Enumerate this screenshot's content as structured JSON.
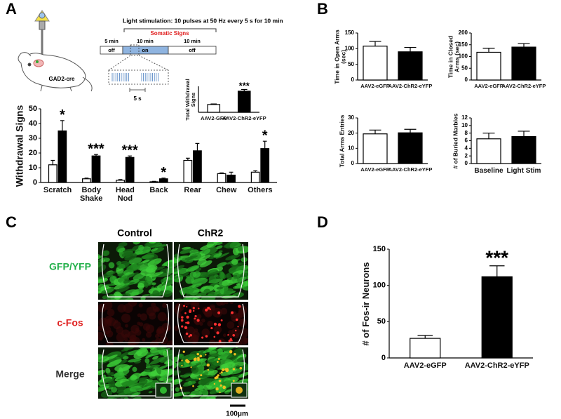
{
  "panels": [
    "A",
    "B",
    "C",
    "D"
  ],
  "protocol": {
    "title": "Light stimulation:  10 pulses at 50 Hz every 5 s for 10 min",
    "window_label": "Somatic Signs",
    "segments": [
      {
        "duration": "5 min",
        "state": "off"
      },
      {
        "duration": "10 min",
        "state": "on"
      },
      {
        "duration": "10 min",
        "state": "off"
      }
    ],
    "scale": "5 s",
    "mouse_line": "GAD2-cre"
  },
  "micrographs": {
    "columns": [
      "Control",
      "ChR2"
    ],
    "rows": [
      "GFP/YFP",
      "c-Fos",
      "Merge"
    ],
    "row_colors": [
      "#22b04a",
      "#e02020",
      "#333333"
    ],
    "scale_bar": "100μm"
  },
  "chart_data": [
    {
      "type": "bar",
      "ylabel": "Withdrawal Signs",
      "categories": [
        "Scratch",
        "Body Shake",
        "Head Nod",
        "Back",
        "Rear",
        "Chew",
        "Others"
      ],
      "series": [
        {
          "color": "#ffffff",
          "values": [
            12,
            2.5,
            1.5,
            0.5,
            15,
            6,
            7
          ],
          "errors": [
            3,
            0.5,
            0.5,
            0.3,
            1.5,
            0.5,
            1
          ]
        },
        {
          "color": "#000000",
          "values": [
            35,
            18,
            17,
            2.5,
            21.5,
            5,
            23
          ],
          "errors": [
            7,
            1,
            1,
            0.5,
            5,
            2,
            5
          ]
        }
      ],
      "annotations": [
        {
          "category": "Scratch",
          "text": "*"
        },
        {
          "category": "Body Shake",
          "text": "***"
        },
        {
          "category": "Head Nod",
          "text": "***"
        },
        {
          "category": "Back",
          "text": "*"
        },
        {
          "category": "Others",
          "text": "*"
        }
      ],
      "ylim": [
        0,
        50
      ],
      "yticks": [
        0,
        10,
        20,
        30,
        40,
        50
      ]
    },
    {
      "type": "bar",
      "ylabel": "Total Withdrawal Signs",
      "categories": [
        "AAV2-GFP",
        "AAV2-ChR2-eYFP"
      ],
      "values": [
        45,
        122
      ],
      "errors": [
        3,
        10
      ],
      "colors": [
        "#ffffff",
        "#000000"
      ],
      "annotations": [
        {
          "category": "AAV2-ChR2-eYFP",
          "text": "***"
        }
      ],
      "ylim": [
        0,
        150
      ]
    },
    {
      "type": "bar",
      "ylabel": "Time in Open Arms (sec)",
      "categories": [
        "AAV2-eGFP",
        "AAV2-ChR2-eYFP"
      ],
      "values": [
        108,
        90
      ],
      "errors": [
        15,
        14
      ],
      "colors": [
        "#ffffff",
        "#000000"
      ],
      "ylim": [
        0,
        150
      ],
      "yticks": [
        0,
        50,
        100,
        150
      ]
    },
    {
      "type": "bar",
      "ylabel": "Time in Closed Arms (sec)",
      "categories": [
        "AAV2-eGFP",
        "AAV2-ChR2-eYFP"
      ],
      "values": [
        118,
        140
      ],
      "errors": [
        17,
        15
      ],
      "colors": [
        "#ffffff",
        "#000000"
      ],
      "ylim": [
        0,
        200
      ],
      "yticks": [
        0,
        50,
        100,
        150,
        200
      ]
    },
    {
      "type": "bar",
      "ylabel": "Total Arms Entries",
      "categories": [
        "AAV2-eGFP",
        "AAV2-ChR2-eYFP"
      ],
      "values": [
        19.5,
        20.2
      ],
      "errors": [
        2.5,
        2.3
      ],
      "colors": [
        "#ffffff",
        "#000000"
      ],
      "ylim": [
        0,
        30
      ],
      "yticks": [
        0,
        10,
        20,
        30
      ]
    },
    {
      "type": "bar",
      "ylabel": "# of Buried Marbles",
      "categories": [
        "Baseline",
        "Light Stim"
      ],
      "values": [
        6.5,
        7.1
      ],
      "errors": [
        1.5,
        1.4
      ],
      "colors": [
        "#ffffff",
        "#000000"
      ],
      "ylim": [
        0,
        12
      ],
      "yticks": [
        0,
        2,
        4,
        6,
        8,
        10,
        12
      ]
    },
    {
      "type": "bar",
      "ylabel": "# of Fos-ir Neurons",
      "categories": [
        "AAV2-eGFP",
        "AAV2-ChR2-eYFP"
      ],
      "values": [
        27,
        112
      ],
      "errors": [
        4,
        15
      ],
      "colors": [
        "#ffffff",
        "#000000"
      ],
      "annotations": [
        {
          "category": "AAV2-ChR2-eYFP",
          "text": "***"
        }
      ],
      "ylim": [
        0,
        150
      ],
      "yticks": [
        0,
        50,
        100,
        150
      ]
    }
  ]
}
